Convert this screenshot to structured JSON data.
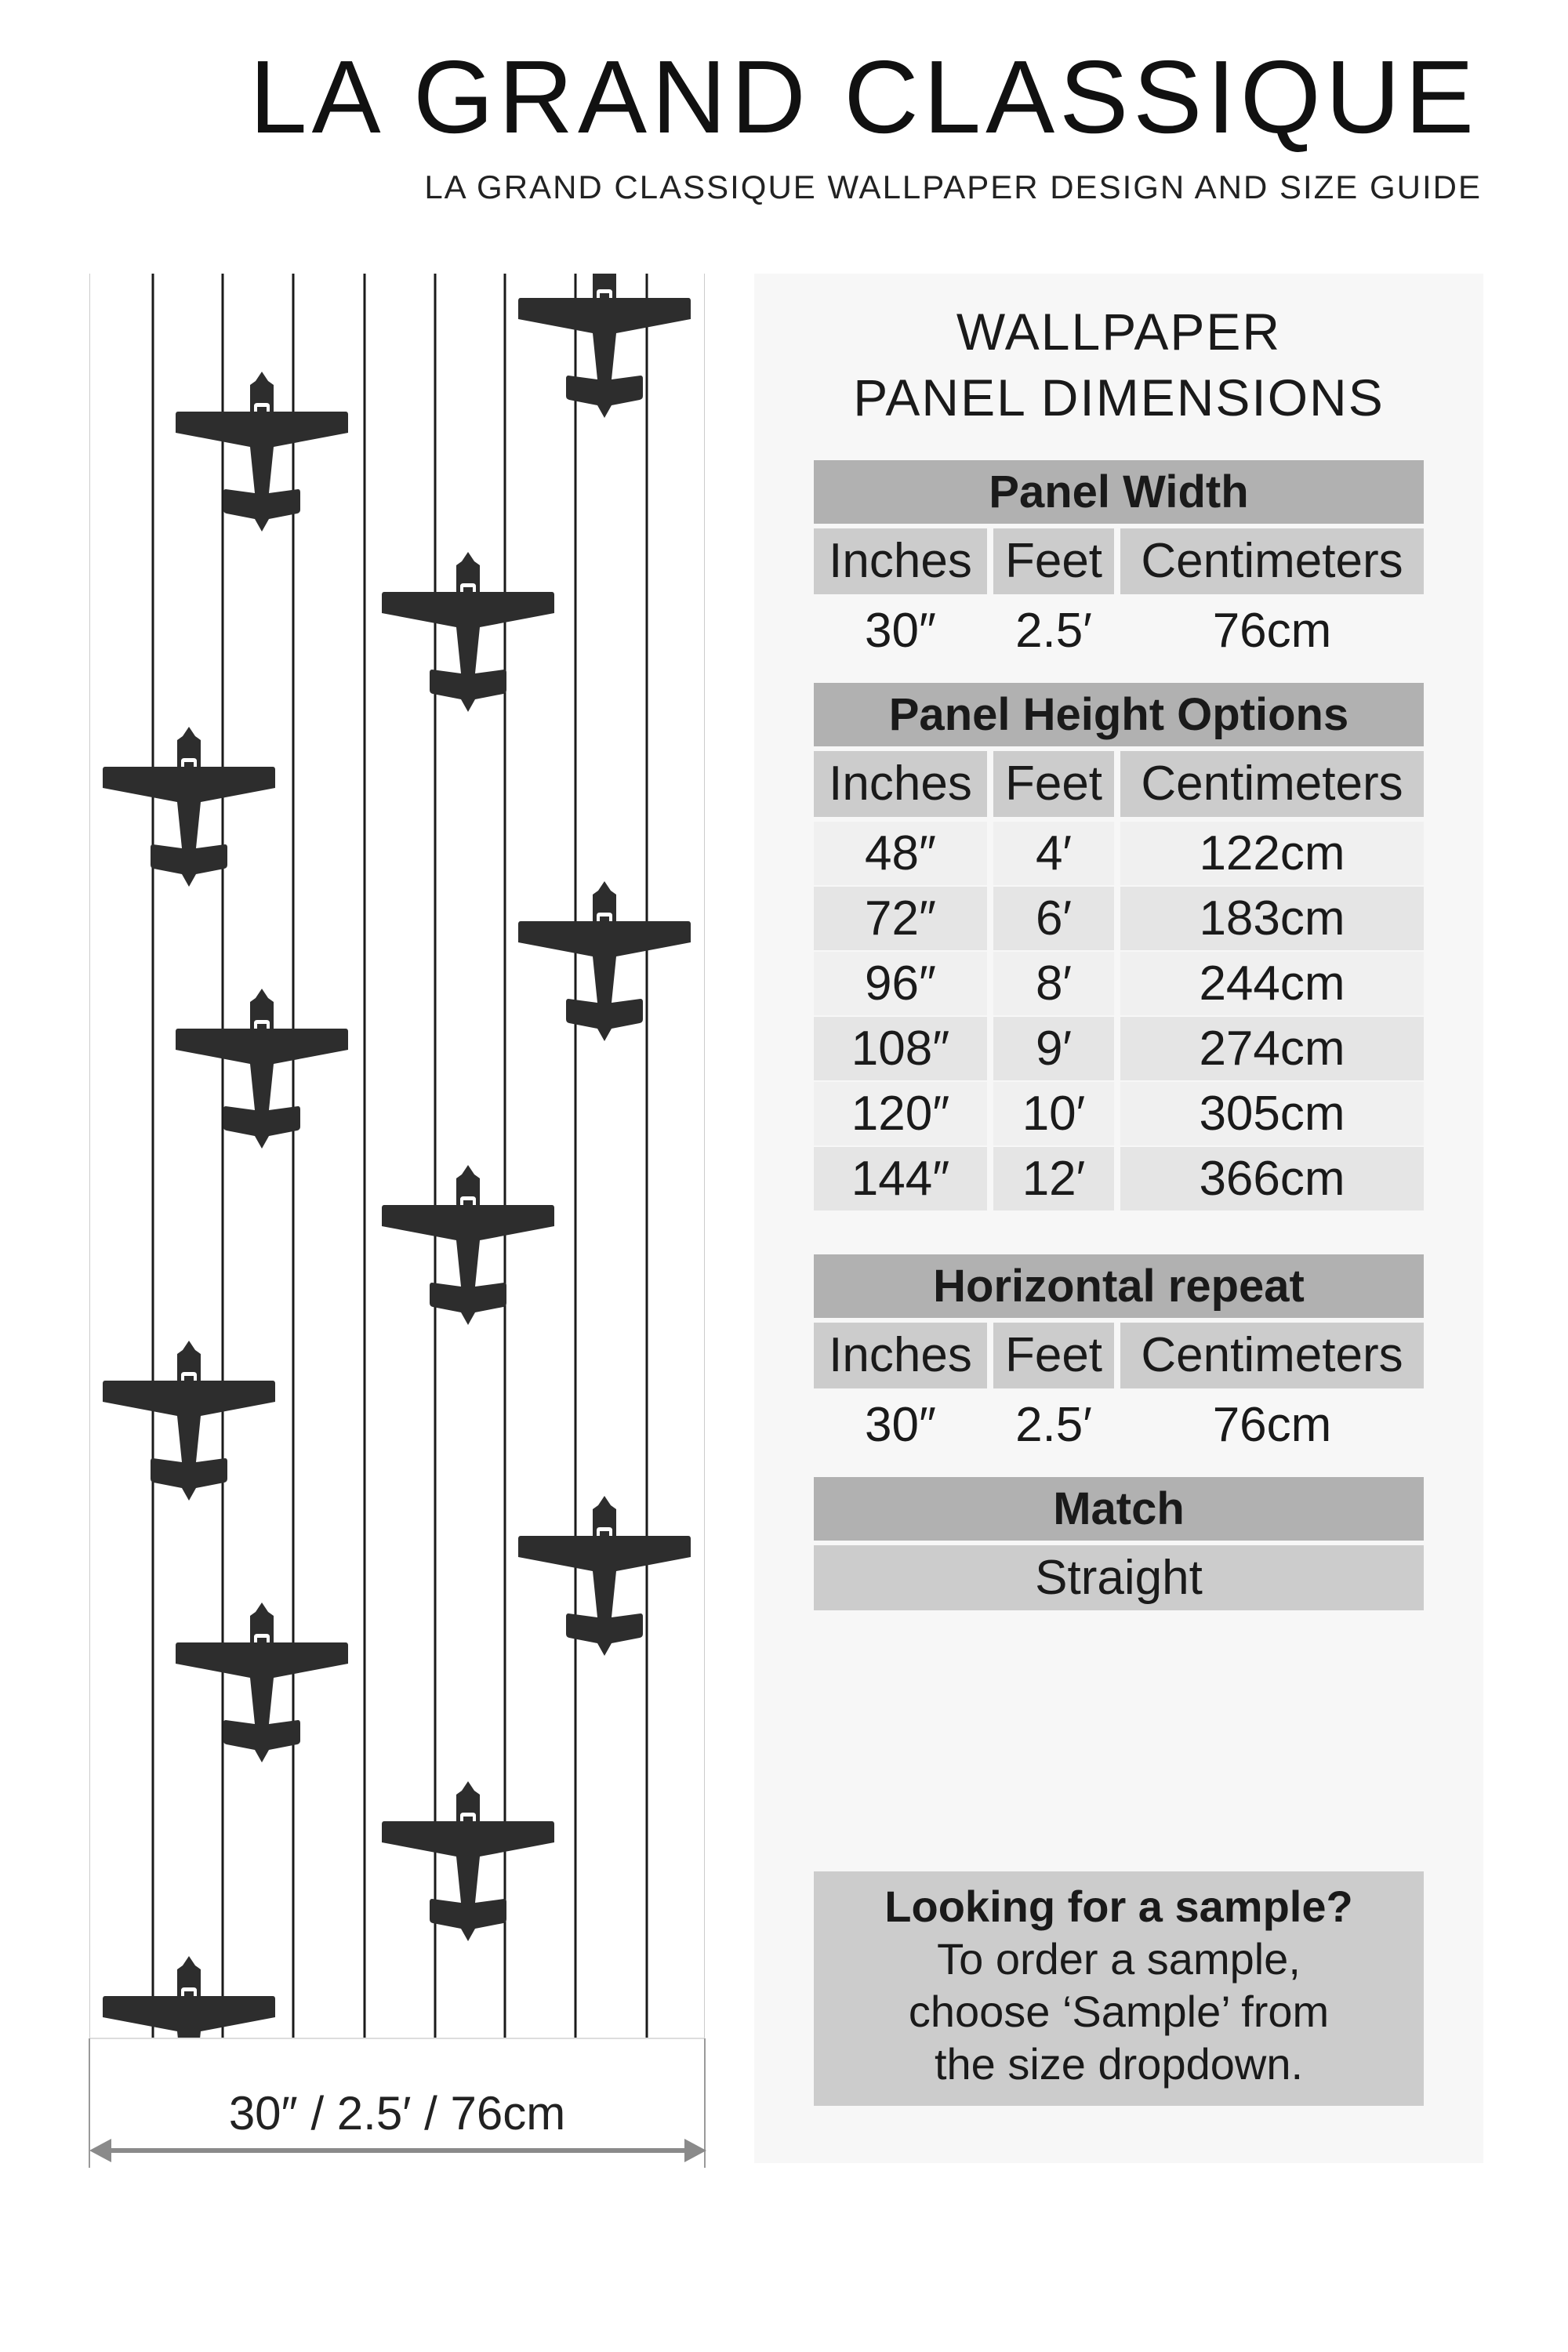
{
  "brand": {
    "title": "LA GRAND CLASSIQUE",
    "subtitle": "LA GRAND CLASSIQUE WALLPAPER DESIGN AND SIZE GUIDE"
  },
  "preview": {
    "pattern": "vertical pinstripes with black propeller airplane silhouettes",
    "stripe_color": "#1a1a1a",
    "plane_color": "#2d2d2d",
    "width_label": "30″ / 2.5′ / 76cm",
    "arrow_color": "#8a8a8a"
  },
  "info": {
    "heading_line1": "WALLPAPER",
    "heading_line2": "PANEL DIMENSIONS",
    "columns": [
      "Inches",
      "Feet",
      "Centimeters"
    ],
    "panel_width": {
      "title": "Panel Width",
      "row": [
        "30″",
        "2.5′",
        "76cm"
      ]
    },
    "panel_height": {
      "title": "Panel Height Options",
      "rows": [
        [
          "48″",
          "4′",
          "122cm"
        ],
        [
          "72″",
          "6′",
          "183cm"
        ],
        [
          "96″",
          "8′",
          "244cm"
        ],
        [
          "108″",
          "9′",
          "274cm"
        ],
        [
          "120″",
          "10′",
          "305cm"
        ],
        [
          "144″",
          "12′",
          "366cm"
        ]
      ]
    },
    "horizontal_repeat": {
      "title": "Horizontal repeat",
      "row": [
        "30″",
        "2.5′",
        "76cm"
      ]
    },
    "match": {
      "title": "Match",
      "value": "Straight"
    },
    "sample": {
      "title": "Looking for a sample?",
      "line1": "To order a sample,",
      "line2": "choose ‘Sample’ from",
      "line3": "the size dropdown."
    }
  },
  "colors": {
    "header_bg": "#b1b1b1",
    "subheader_bg": "#cccccc",
    "panel_bg": "#f7f7f7"
  }
}
